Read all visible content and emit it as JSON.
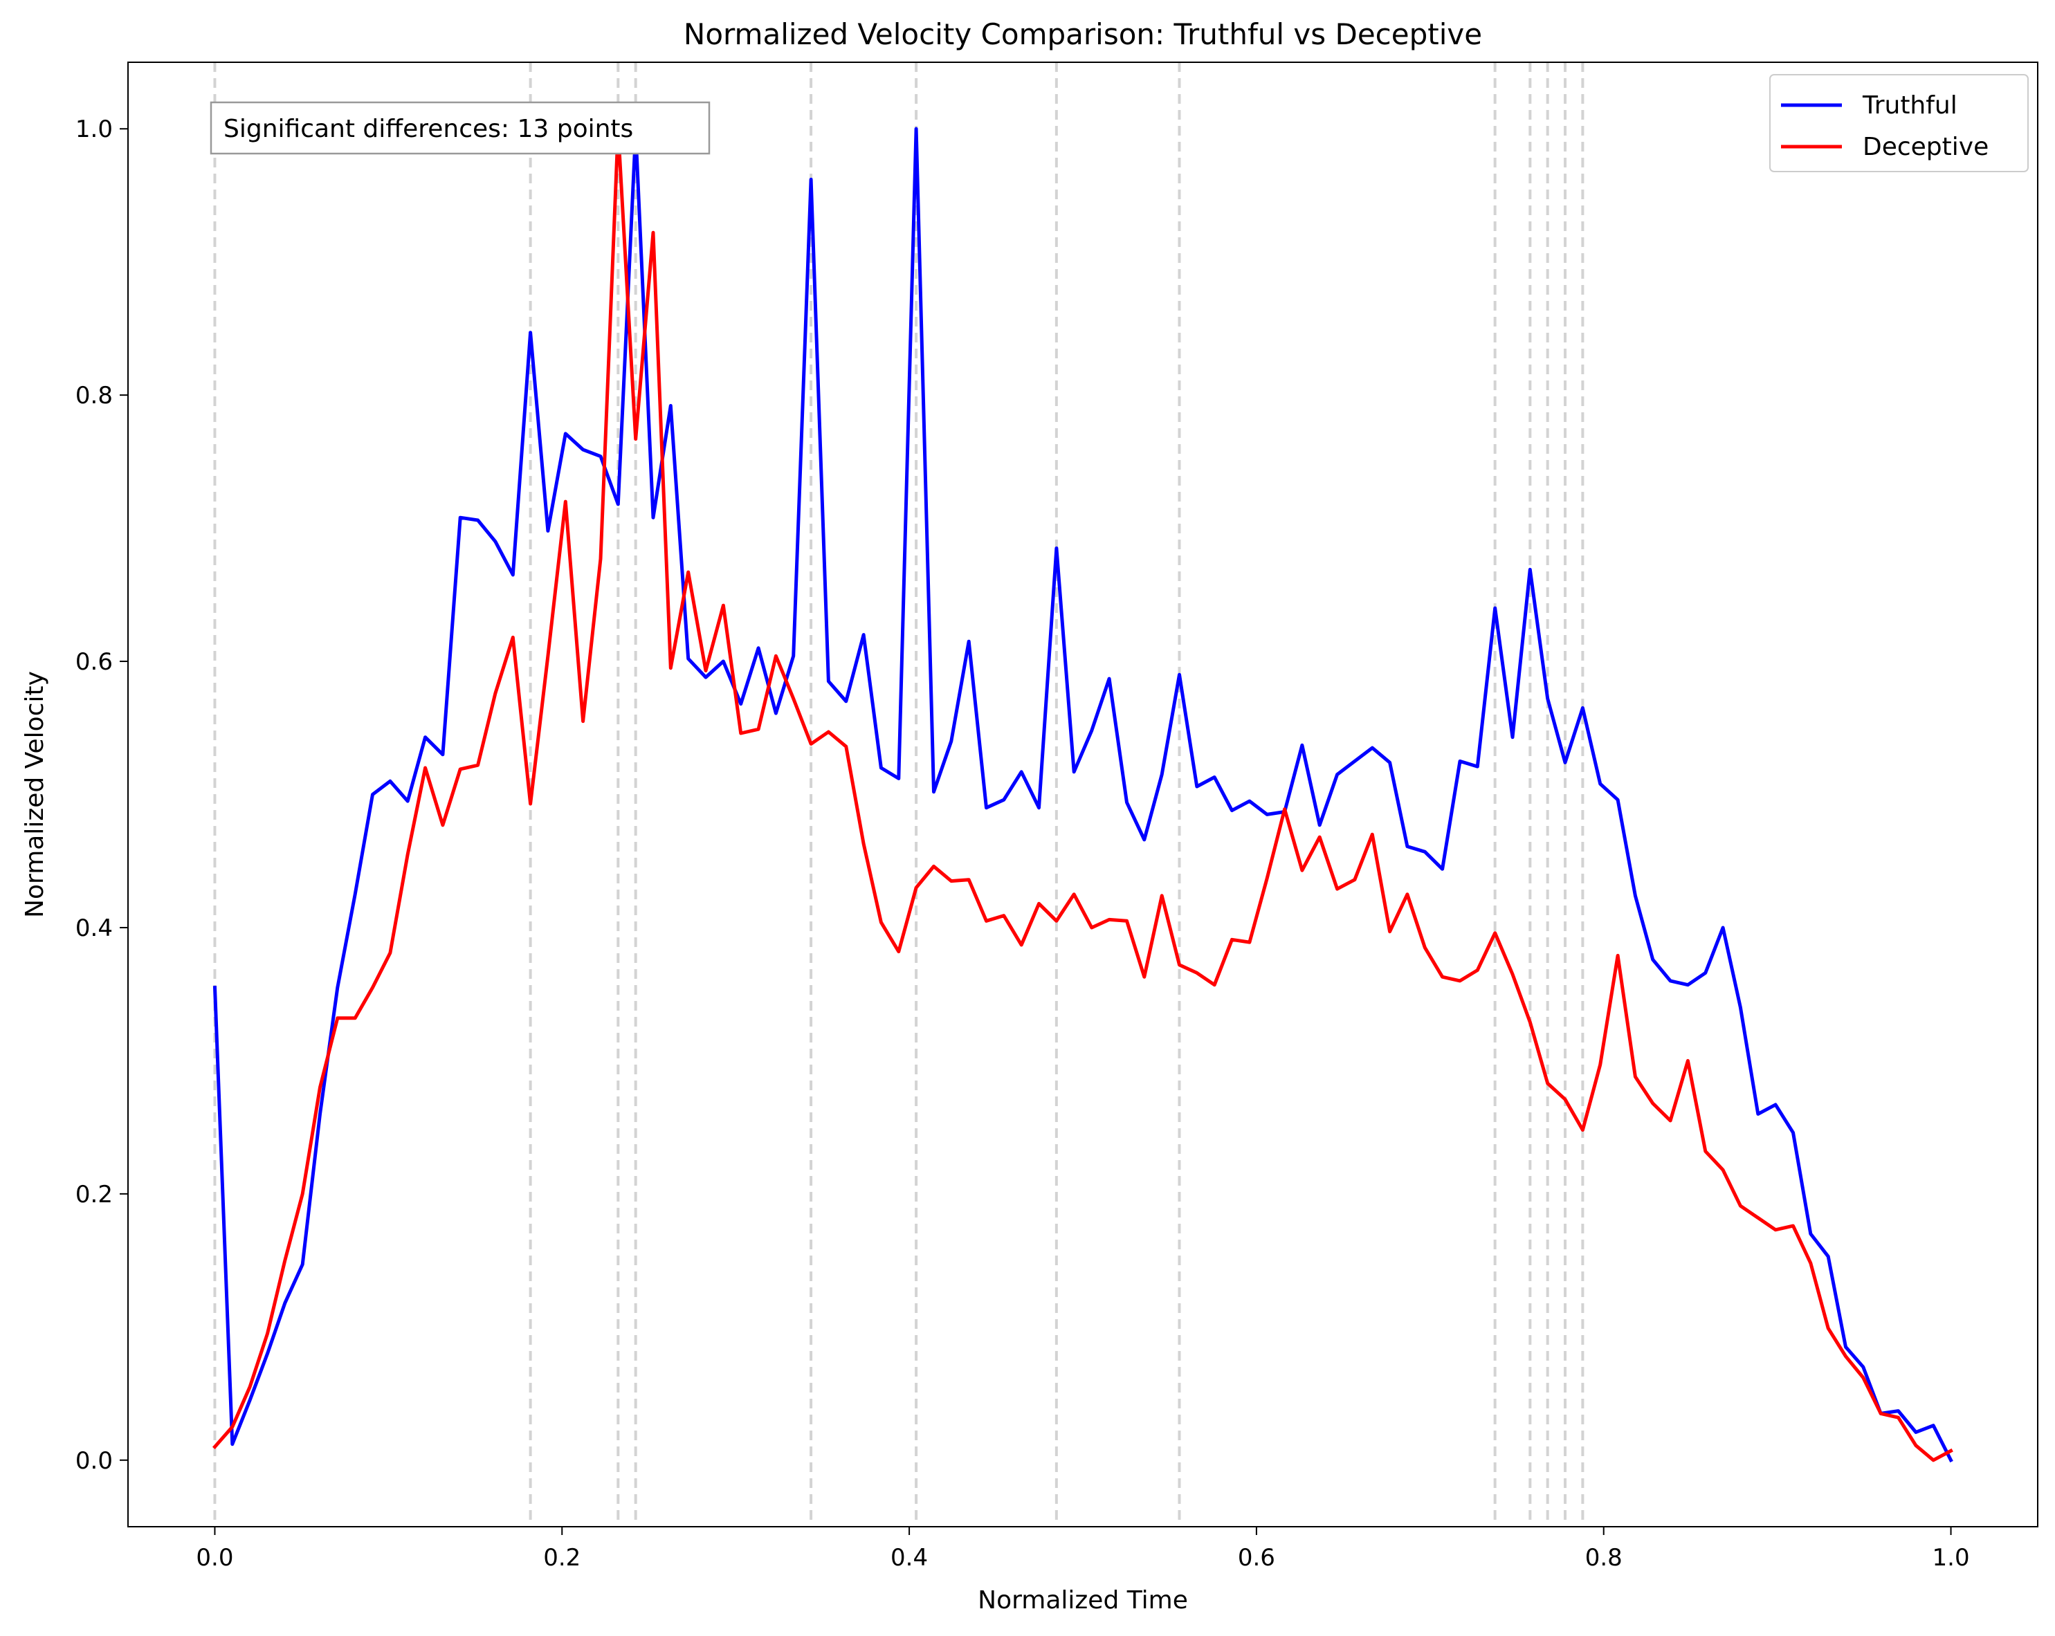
{
  "chart_data": {
    "type": "line",
    "title": "Normalized Velocity Comparison: Truthful vs Deceptive",
    "xlabel": "Normalized Time",
    "ylabel": "Normalized Velocity",
    "xlim": [
      -0.05,
      1.05
    ],
    "ylim": [
      -0.05,
      1.05
    ],
    "xticks": [
      0.0,
      0.2,
      0.4,
      0.6,
      0.8,
      1.0
    ],
    "xtick_labels": [
      "0.0",
      "0.2",
      "0.4",
      "0.6",
      "0.8",
      "1.0"
    ],
    "yticks": [
      0.0,
      0.2,
      0.4,
      0.6,
      0.8,
      1.0
    ],
    "ytick_labels": [
      "0.0",
      "0.2",
      "0.4",
      "0.6",
      "0.8",
      "1.0"
    ],
    "grid": false,
    "legend_position": "top-right",
    "annotation": "Significant differences: 13 points",
    "significant_x": [
      0.0,
      0.1818,
      0.2323,
      0.2424,
      0.3434,
      0.404,
      0.4848,
      0.5556,
      0.7374,
      0.7576,
      0.7677,
      0.7778,
      0.7879
    ],
    "x": [
      0.0,
      0.0101,
      0.0202,
      0.0303,
      0.0404,
      0.0505,
      0.0606,
      0.0707,
      0.0808,
      0.0909,
      0.101,
      0.1111,
      0.1212,
      0.1313,
      0.1414,
      0.1515,
      0.1616,
      0.1717,
      0.1818,
      0.1919,
      0.202,
      0.2121,
      0.2222,
      0.2323,
      0.2424,
      0.2525,
      0.2626,
      0.2727,
      0.2828,
      0.2929,
      0.303,
      0.3131,
      0.3232,
      0.3333,
      0.3434,
      0.3535,
      0.3636,
      0.3737,
      0.3838,
      0.3939,
      0.404,
      0.4141,
      0.4242,
      0.4343,
      0.4444,
      0.4545,
      0.4646,
      0.4747,
      0.4848,
      0.4949,
      0.5051,
      0.5152,
      0.5253,
      0.5354,
      0.5455,
      0.5556,
      0.5657,
      0.5758,
      0.5859,
      0.596,
      0.6061,
      0.6162,
      0.6263,
      0.6364,
      0.6465,
      0.6566,
      0.6667,
      0.6768,
      0.6869,
      0.697,
      0.7071,
      0.7172,
      0.7273,
      0.7374,
      0.7475,
      0.7576,
      0.7677,
      0.7778,
      0.7879,
      0.798,
      0.8081,
      0.8182,
      0.8283,
      0.8384,
      0.8485,
      0.8586,
      0.8687,
      0.8788,
      0.8889,
      0.899,
      0.9091,
      0.9192,
      0.9293,
      0.9394,
      0.9495,
      0.9596,
      0.9697,
      0.9798,
      0.9899,
      1.0
    ],
    "series": [
      {
        "name": "Truthful",
        "color": "#0000ff",
        "values": [
          0.355,
          0.012,
          0.045,
          0.08,
          0.118,
          0.147,
          0.26,
          0.355,
          0.425,
          0.5,
          0.51,
          0.495,
          0.543,
          0.53,
          0.708,
          0.706,
          0.69,
          0.665,
          0.847,
          0.698,
          0.771,
          0.759,
          0.754,
          0.718,
          0.998,
          0.708,
          0.792,
          0.602,
          0.588,
          0.6,
          0.568,
          0.61,
          0.561,
          0.604,
          0.962,
          0.585,
          0.57,
          0.62,
          0.52,
          0.512,
          1.0,
          0.502,
          0.54,
          0.615,
          0.49,
          0.496,
          0.517,
          0.49,
          0.685,
          0.517,
          0.548,
          0.587,
          0.494,
          0.466,
          0.515,
          0.59,
          0.506,
          0.513,
          0.488,
          0.495,
          0.485,
          0.487,
          0.537,
          0.477,
          0.515,
          0.525,
          0.535,
          0.524,
          0.461,
          0.457,
          0.444,
          0.525,
          0.521,
          0.64,
          0.543,
          0.669,
          0.572,
          0.524,
          0.565,
          0.508,
          0.496,
          0.424,
          0.376,
          0.36,
          0.357,
          0.366,
          0.4,
          0.34,
          0.26,
          0.267,
          0.246,
          0.17,
          0.153,
          0.085,
          0.07,
          0.035,
          0.037,
          0.021,
          0.026,
          0.0
        ]
      },
      {
        "name": "Deceptive",
        "color": "#ff0000",
        "values": [
          0.01,
          0.025,
          0.055,
          0.095,
          0.15,
          0.2,
          0.28,
          0.332,
          0.332,
          0.355,
          0.381,
          0.455,
          0.52,
          0.477,
          0.519,
          0.522,
          0.576,
          0.618,
          0.493,
          0.604,
          0.72,
          0.555,
          0.677,
          1.0,
          0.767,
          0.922,
          0.595,
          0.667,
          0.593,
          0.642,
          0.546,
          0.549,
          0.604,
          0.572,
          0.538,
          0.547,
          0.536,
          0.463,
          0.404,
          0.382,
          0.43,
          0.446,
          0.435,
          0.436,
          0.405,
          0.409,
          0.387,
          0.418,
          0.405,
          0.425,
          0.4,
          0.406,
          0.405,
          0.363,
          0.424,
          0.372,
          0.366,
          0.357,
          0.391,
          0.389,
          0.437,
          0.489,
          0.443,
          0.468,
          0.429,
          0.436,
          0.47,
          0.397,
          0.425,
          0.385,
          0.363,
          0.36,
          0.368,
          0.396,
          0.365,
          0.329,
          0.283,
          0.271,
          0.248,
          0.297,
          0.379,
          0.288,
          0.268,
          0.255,
          0.3,
          0.232,
          0.218,
          0.191,
          0.182,
          0.173,
          0.176,
          0.148,
          0.099,
          0.078,
          0.062,
          0.035,
          0.032,
          0.011,
          0.0,
          0.007
        ]
      }
    ]
  }
}
